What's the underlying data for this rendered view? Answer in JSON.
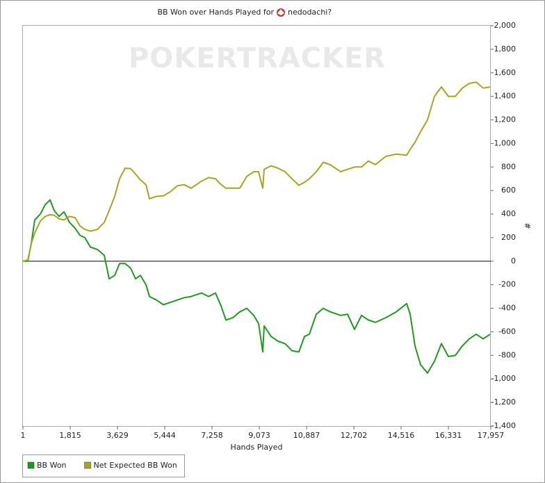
{
  "chart_data": {
    "type": "line",
    "title": "BB Won over Hands Played for",
    "player": "nedodachi?",
    "watermark": "POKERTRACKER",
    "x_label": "Hands Played",
    "y_label": "#",
    "xlim": [
      1,
      17957
    ],
    "xticks": [
      1,
      {
        "value": 1815,
        "label": "1,815"
      },
      {
        "value": 3629,
        "label": "3,629"
      },
      {
        "value": 5444,
        "label": "5,444"
      },
      {
        "value": 7258,
        "label": "7,258"
      },
      {
        "value": 9073,
        "label": "9,073"
      },
      {
        "value": 10887,
        "label": "10,887"
      },
      {
        "value": 12702,
        "label": "12,702"
      },
      {
        "value": 14516,
        "label": "14,516"
      },
      {
        "value": 16331,
        "label": "16,331"
      },
      {
        "value": 17957,
        "label": "17,957"
      }
    ],
    "ylim": [
      -1400,
      2000
    ],
    "yticks": [
      {
        "value": -1400,
        "label": "-1,400"
      },
      {
        "value": -1200,
        "label": "-1,200"
      },
      {
        "value": -1000,
        "label": "-1,000"
      },
      -800,
      -600,
      -400,
      -200,
      0,
      200,
      400,
      600,
      800,
      {
        "value": 1000,
        "label": "1,000"
      },
      {
        "value": 1200,
        "label": "1,200"
      },
      {
        "value": 1400,
        "label": "1,400"
      },
      {
        "value": 1600,
        "label": "1,600"
      },
      {
        "value": 1800,
        "label": "1,800"
      },
      {
        "value": 2000,
        "label": "2,000"
      }
    ],
    "zero_line": true,
    "y_axis_side": "right",
    "legend": "bottom-left",
    "x": [
      1,
      188,
      321,
      455,
      668,
      855,
      1042,
      1202,
      1388,
      1575,
      1789,
      2002,
      2189,
      2376,
      2589,
      2856,
      3123,
      3309,
      3523,
      3709,
      3923,
      4136,
      4323,
      4510,
      4723,
      4857,
      5124,
      5390,
      5657,
      5924,
      6191,
      6458,
      6858,
      7124,
      7391,
      7605,
      7791,
      8058,
      8325,
      8592,
      8859,
      9046,
      9206,
      9259,
      9526,
      9793,
      10060,
      10326,
      10593,
      10807,
      10993,
      11260,
      11527,
      11794,
      12194,
      12461,
      12727,
      12994,
      13261,
      13528,
      13928,
      14328,
      14728,
      14862,
      15048,
      15262,
      15528,
      15795,
      16062,
      16329,
      16596,
      16863,
      17130,
      17396,
      17663,
      17930
    ],
    "series": [
      {
        "name": "BB Won",
        "color": "#1a9e1a",
        "values": [
          0,
          0,
          150,
          350,
          400,
          480,
          520,
          430,
          380,
          420,
          330,
          280,
          220,
          200,
          120,
          100,
          50,
          -150,
          -120,
          -20,
          -20,
          -60,
          -150,
          -120,
          -200,
          -300,
          -330,
          -370,
          -350,
          -330,
          -310,
          -300,
          -270,
          -300,
          -270,
          -380,
          -500,
          -480,
          -430,
          -400,
          -460,
          -530,
          -770,
          -550,
          -640,
          -680,
          -700,
          -760,
          -770,
          -640,
          -620,
          -450,
          -400,
          -430,
          -460,
          -450,
          -580,
          -460,
          -500,
          -520,
          -480,
          -430,
          -360,
          -450,
          -720,
          -880,
          -950,
          -850,
          -700,
          -810,
          -800,
          -720,
          -660,
          -620,
          -660,
          -620
        ]
      },
      {
        "name": "Net Expected BB Won",
        "color": "#a6a61c",
        "values": [
          0,
          10,
          150,
          240,
          340,
          380,
          395,
          390,
          360,
          350,
          380,
          370,
          300,
          270,
          255,
          270,
          330,
          430,
          550,
          700,
          790,
          785,
          740,
          690,
          650,
          530,
          550,
          555,
          590,
          640,
          650,
          620,
          680,
          710,
          700,
          650,
          620,
          620,
          620,
          720,
          760,
          760,
          620,
          780,
          810,
          790,
          760,
          700,
          645,
          670,
          700,
          760,
          840,
          820,
          760,
          780,
          800,
          800,
          850,
          820,
          890,
          910,
          900,
          950,
          1010,
          1100,
          1200,
          1400,
          1480,
          1400,
          1400,
          1470,
          1510,
          1520,
          1470,
          1480
        ]
      }
    ]
  }
}
